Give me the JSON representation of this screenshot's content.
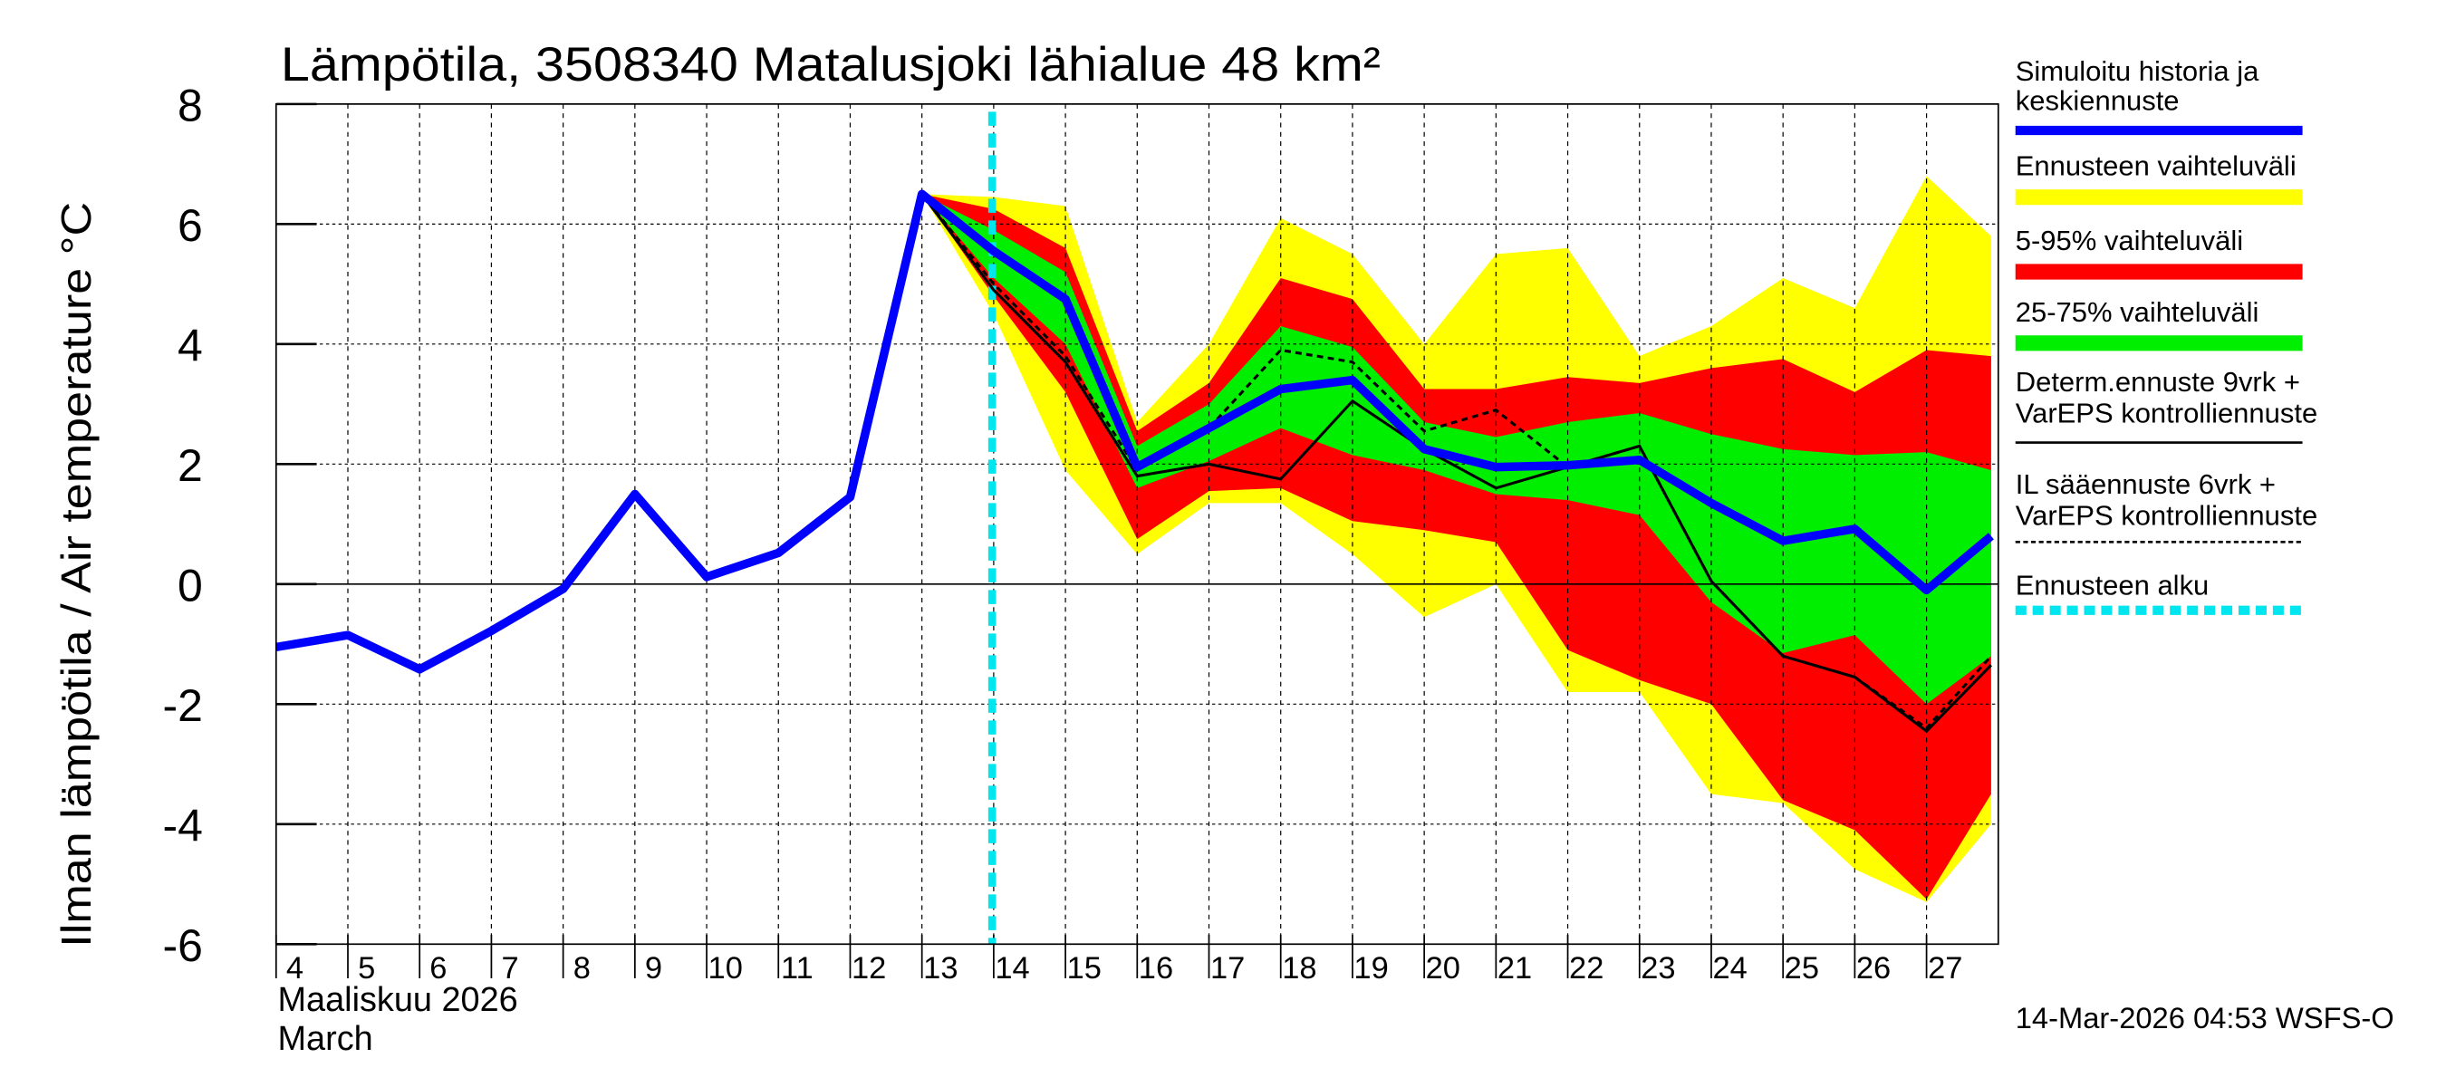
{
  "chart_data": {
    "type": "area",
    "title": "Lämpötila, 3508340 Matalusjoki lähialue 48 km²",
    "ylabel": "Ilman lämpötila / Air temperature   °C",
    "xlabel_line1": "Maaliskuu 2026",
    "xlabel_line2": "March",
    "footer": "14-Mar-2026 04:53 WSFS-O",
    "ylim": [
      -6,
      8
    ],
    "xlim": [
      4,
      27.9
    ],
    "yticks": [
      "-6",
      "-4",
      "-2",
      "0",
      "2",
      "4",
      "6",
      "8"
    ],
    "xticks": [
      "4",
      "5",
      "6",
      "7",
      "8",
      "9",
      "10",
      "11",
      "12",
      "13",
      "14",
      "15",
      "16",
      "17",
      "18",
      "19",
      "20",
      "21",
      "22",
      "23",
      "24",
      "25",
      "26",
      "27"
    ],
    "grid": true,
    "forecast_start": 14,
    "legend_position": "right",
    "colors": {
      "sim": "#0000ff",
      "range": "#ffff00",
      "p5_95": "#ff0000",
      "p25_75": "#00ee00",
      "determ": "#000000",
      "il": "#000000",
      "start": "#00e5ee"
    },
    "legend": [
      {
        "key": "sim",
        "line1": "Simuloitu historia ja",
        "line2": "keskiennuste"
      },
      {
        "key": "range",
        "line1": "Ennusteen vaihteluväli",
        "line2": ""
      },
      {
        "key": "p5_95",
        "line1": "5-95% vaihteluväli",
        "line2": ""
      },
      {
        "key": "p25_75",
        "line1": "25-75% vaihteluväli",
        "line2": ""
      },
      {
        "key": "determ",
        "line1": "Determ.ennuste 9vrk +",
        "line2": "VarEPS kontrolliennuste"
      },
      {
        "key": "il",
        "line1": "IL sääennuste 6vrk  +",
        "line2": "  VarEPS kontrolliennuste"
      },
      {
        "key": "start",
        "line1": "Ennusteen alku",
        "line2": ""
      }
    ],
    "band_x": [
      13,
      14,
      15,
      16,
      17,
      18,
      19,
      20,
      21,
      22,
      23,
      24,
      25,
      26,
      27,
      27.9
    ],
    "range_upper": [
      6.5,
      6.45,
      6.3,
      2.7,
      4.0,
      6.1,
      5.5,
      4.0,
      5.5,
      5.6,
      3.8,
      4.3,
      5.1,
      4.6,
      6.8,
      5.8
    ],
    "range_lower": [
      6.5,
      4.5,
      1.9,
      0.5,
      1.35,
      1.35,
      0.5,
      -0.55,
      0.0,
      -1.8,
      -1.8,
      -3.5,
      -3.65,
      -4.75,
      -5.3,
      -4.0
    ],
    "p95": [
      6.5,
      6.25,
      5.6,
      2.55,
      3.35,
      5.1,
      4.75,
      3.25,
      3.25,
      3.45,
      3.35,
      3.6,
      3.75,
      3.2,
      3.9,
      3.8
    ],
    "p5": [
      6.5,
      4.8,
      3.2,
      0.75,
      1.55,
      1.6,
      1.05,
      0.9,
      0.7,
      -1.1,
      -1.6,
      -2.0,
      -3.6,
      -4.1,
      -5.25,
      -3.5
    ],
    "p75": [
      6.5,
      5.9,
      5.2,
      2.3,
      3.0,
      4.3,
      3.95,
      2.7,
      2.45,
      2.7,
      2.85,
      2.5,
      2.25,
      2.15,
      2.2,
      1.9
    ],
    "p25": [
      6.5,
      5.1,
      4.0,
      1.6,
      2.05,
      2.6,
      2.15,
      1.9,
      1.5,
      1.4,
      1.15,
      -0.3,
      -1.15,
      -0.85,
      -2.0,
      -1.2
    ],
    "determ": [
      6.5,
      4.9,
      3.7,
      1.8,
      2.0,
      1.75,
      3.05,
      2.25,
      1.6,
      1.95,
      2.3,
      0.05,
      -1.2,
      -1.55,
      -2.45,
      -1.35
    ],
    "il": [
      6.5,
      5.0,
      3.8,
      1.9,
      2.6,
      3.9,
      3.7,
      2.55,
      2.9,
      1.95,
      2.3,
      0.05,
      -1.2,
      -1.55,
      -2.4,
      -1.2
    ],
    "sim_x": [
      4,
      5,
      6,
      7,
      8,
      9,
      10,
      11,
      12,
      13,
      14,
      15,
      16,
      17,
      18,
      19,
      20,
      21,
      22,
      23,
      24,
      25,
      26,
      27,
      27.9
    ],
    "sim": [
      -1.05,
      -0.85,
      -1.42,
      -0.78,
      -0.08,
      1.5,
      0.12,
      0.52,
      1.45,
      6.5,
      5.55,
      4.75,
      1.95,
      2.6,
      3.25,
      3.4,
      2.25,
      1.95,
      1.98,
      2.07,
      1.35,
      0.72,
      0.92,
      -0.1,
      0.8
    ]
  }
}
